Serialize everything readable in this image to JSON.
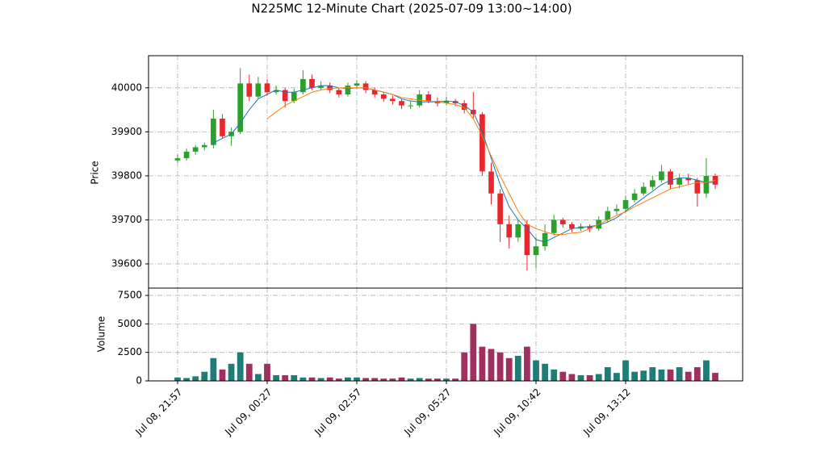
{
  "chart_data": {
    "type": "candlestick",
    "title": "N225MC 12-Minute Chart (2025-07-09 13:00~14:00)",
    "ylabel": "Price",
    "volume_ylabel": "Volume",
    "xlim": [
      -3.24,
      63.06
    ],
    "xticks": [
      {
        "value": 0,
        "label": "Jul 08, 21:57"
      },
      {
        "value": 10,
        "label": "Jul 09, 00:27"
      },
      {
        "value": 20,
        "label": "Jul 09, 02:57"
      },
      {
        "value": 30,
        "label": "Jul 09, 05:27"
      },
      {
        "value": 40,
        "label": "Jul 09, 10:42"
      },
      {
        "value": 50,
        "label": "Jul 09, 13:12"
      }
    ],
    "ylim": [
      39545,
      40073
    ],
    "yticks": [
      39600,
      39700,
      39800,
      39900,
      40000
    ],
    "volume_ylim": [
      0,
      8143
    ],
    "volume_yticks": [
      0,
      2500,
      5000,
      7500
    ],
    "grid": true,
    "up_color": "#2ca02c",
    "down_color": "#e8262b",
    "volume_up_color": "#1f7d78",
    "volume_down_color": "#a03060",
    "open": [
      39835,
      39840,
      39855,
      39865,
      39870,
      39930,
      39890,
      39900,
      40010,
      39980,
      40010,
      39990,
      39995,
      39970,
      39990,
      40020,
      40000,
      40005,
      39995,
      39985,
      40005,
      40010,
      39995,
      39985,
      39975,
      39970,
      39960,
      39960,
      39985,
      39970,
      39965,
      39970,
      39965,
      39950,
      39940,
      39810,
      39760,
      39690,
      39660,
      39690,
      39620,
      39640,
      39670,
      39700,
      39690,
      39680,
      39685,
      39680,
      39700,
      39720,
      39725,
      39745,
      39760,
      39775,
      39790,
      39810,
      39780,
      39795,
      39790,
      39760,
      39800
    ],
    "high": [
      39848,
      39862,
      39870,
      39876,
      39950,
      39940,
      39910,
      40045,
      40030,
      40025,
      40020,
      40005,
      40000,
      39998,
      40040,
      40030,
      40015,
      40012,
      40000,
      40012,
      40018,
      40015,
      40000,
      39990,
      39982,
      39975,
      39970,
      39995,
      39992,
      39978,
      39980,
      39975,
      39972,
      39990,
      39945,
      39830,
      39770,
      39710,
      39700,
      39700,
      39660,
      39690,
      39712,
      39705,
      39695,
      39692,
      39690,
      39708,
      39730,
      39735,
      39755,
      39770,
      39785,
      39800,
      39825,
      39815,
      39805,
      39805,
      39795,
      39840,
      39805
    ],
    "low": [
      39830,
      39835,
      39848,
      39858,
      39862,
      39885,
      39868,
      39895,
      39970,
      39975,
      39982,
      39985,
      39955,
      39965,
      39985,
      39995,
      39995,
      39988,
      39978,
      39980,
      39998,
      39988,
      39978,
      39968,
      39962,
      39952,
      39952,
      39955,
      39965,
      39958,
      39960,
      39958,
      39942,
      39930,
      39800,
      39735,
      39650,
      39635,
      39650,
      39585,
      39590,
      39630,
      39665,
      39682,
      39672,
      39675,
      39672,
      39675,
      39695,
      39712,
      39718,
      39740,
      39755,
      39768,
      39785,
      39770,
      39772,
      39780,
      39730,
      39750,
      39770
    ],
    "close": [
      39840,
      39855,
      39865,
      39870,
      39930,
      39890,
      39900,
      40010,
      39980,
      40010,
      39990,
      39995,
      39970,
      39990,
      40020,
      40000,
      40005,
      39995,
      39985,
      40005,
      40010,
      39995,
      39985,
      39975,
      39970,
      39960,
      39960,
      39985,
      39970,
      39965,
      39970,
      39965,
      39950,
      39940,
      39810,
      39760,
      39690,
      39660,
      39690,
      39620,
      39640,
      39670,
      39700,
      39690,
      39680,
      39685,
      39680,
      39700,
      39720,
      39725,
      39745,
      39760,
      39775,
      39790,
      39810,
      39780,
      39795,
      39790,
      39760,
      39800,
      39780
    ],
    "volume": [
      300,
      250,
      400,
      800,
      2000,
      1000,
      1500,
      2500,
      1500,
      600,
      1500,
      500,
      500,
      500,
      300,
      300,
      250,
      300,
      200,
      300,
      300,
      250,
      250,
      200,
      200,
      300,
      200,
      250,
      200,
      200,
      200,
      200,
      2500,
      5000,
      3000,
      2800,
      2500,
      2000,
      2200,
      3000,
      1800,
      1500,
      1000,
      800,
      600,
      500,
      500,
      600,
      1200,
      700,
      1800,
      800,
      900,
      1200,
      1000,
      1000,
      1200,
      800,
      1200,
      1800,
      700
    ],
    "moving_averages": [
      {
        "color": "#1f77b4",
        "values": [
          null,
          null,
          null,
          null,
          39875,
          39885,
          39895,
          39920,
          39950,
          39975,
          39985,
          39995,
          39990,
          39990,
          39995,
          40000,
          40005,
          40005,
          40000,
          39998,
          40000,
          40000,
          39995,
          39990,
          39985,
          39975,
          39970,
          39968,
          39968,
          39968,
          39970,
          39968,
          39960,
          39945,
          39900,
          39840,
          39780,
          39730,
          39700,
          39680,
          39655,
          39650,
          39660,
          39670,
          39680,
          39683,
          39685,
          39688,
          39695,
          39705,
          39720,
          39735,
          39750,
          39765,
          39780,
          39790,
          39795,
          39795,
          39790,
          39785,
          39785
        ]
      },
      {
        "color": "#ff7f0e",
        "values": [
          null,
          null,
          null,
          null,
          null,
          null,
          null,
          null,
          null,
          null,
          39930,
          39945,
          39960,
          39970,
          39980,
          39990,
          39995,
          39998,
          40000,
          40000,
          40000,
          40000,
          39995,
          39990,
          39985,
          39978,
          39975,
          39972,
          39970,
          39968,
          39965,
          39962,
          39955,
          39930,
          39890,
          39845,
          39800,
          39760,
          39720,
          39690,
          39680,
          39673,
          39667,
          39667,
          39670,
          39672,
          39680,
          39690,
          39700,
          39710,
          39718,
          39730,
          39740,
          39750,
          39760,
          39770,
          39775,
          39780,
          39785,
          39785,
          39790
        ]
      }
    ]
  }
}
